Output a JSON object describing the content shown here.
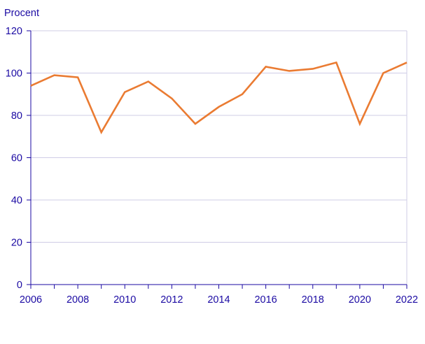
{
  "chart_data": {
    "type": "line",
    "ylabel": "Procent",
    "xlabel": "",
    "xlim": [
      2006,
      2022
    ],
    "ylim": [
      0,
      120
    ],
    "x_ticks": [
      2006,
      2008,
      2010,
      2012,
      2014,
      2016,
      2018,
      2020,
      2022
    ],
    "x_tick_labels": [
      "2006",
      "2008",
      "2010",
      "2012",
      "2014",
      "2016",
      "2018",
      "2020",
      "2022"
    ],
    "x_minor_ticks": [
      2007,
      2009,
      2011,
      2013,
      2015,
      2017,
      2019,
      2021
    ],
    "y_ticks": [
      0,
      20,
      40,
      60,
      80,
      100,
      120
    ],
    "y_tick_labels": [
      "0",
      "20",
      "40",
      "60",
      "80",
      "100",
      "120"
    ],
    "grid": "horizontal",
    "legend": "none",
    "x": [
      2006,
      2007,
      2008,
      2009,
      2010,
      2011,
      2012,
      2013,
      2014,
      2015,
      2016,
      2017,
      2018,
      2019,
      2020,
      2021,
      2022
    ],
    "series": [
      {
        "values": [
          94,
          99,
          98,
          72,
          91,
          96,
          88,
          76,
          84,
          90,
          103,
          101,
          102,
          105,
          76,
          100,
          105
        ],
        "color": "#ea7b32"
      }
    ],
    "colors": {
      "axis_text": "#1b0aa3",
      "axis_line": "#1b0aa3",
      "grid": "#cfcce6",
      "frame": "#cfcce6",
      "series": "#ea7b32"
    }
  }
}
